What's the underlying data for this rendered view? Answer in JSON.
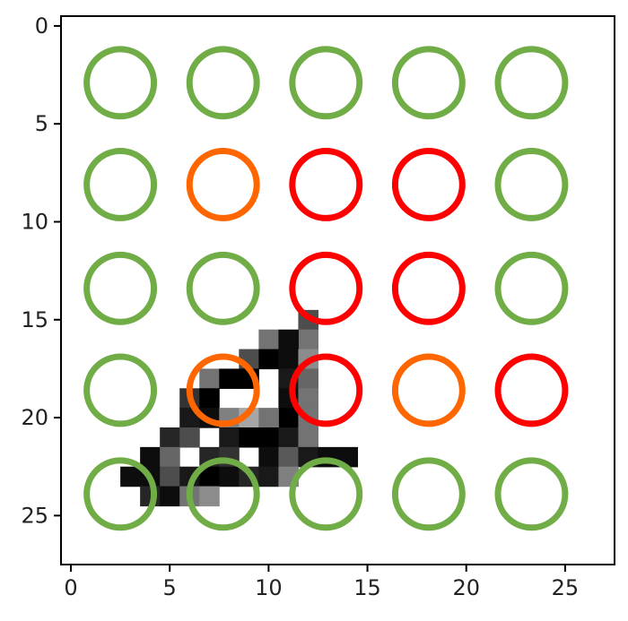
{
  "chart_data": {
    "type": "heatmap",
    "xlim": [
      -0.5,
      27.5
    ],
    "ylim": [
      27.5,
      -0.5
    ],
    "y_inverted": true,
    "xticks": [
      0,
      5,
      10,
      15,
      20,
      25
    ],
    "yticks": [
      0,
      5,
      10,
      15,
      20,
      25
    ],
    "xtick_labels": [
      "0",
      "5",
      "10",
      "15",
      "20",
      "25"
    ],
    "ytick_labels": [
      "0",
      "5",
      "10",
      "15",
      "20",
      "25"
    ],
    "grid": false,
    "image": {
      "description_free": true,
      "colormap": "gray_r",
      "pixels": [
        [
          15,
          12,
          0.7
        ],
        [
          16,
          12,
          0.55
        ],
        [
          16,
          10,
          0.55
        ],
        [
          16,
          11,
          0.95
        ],
        [
          17,
          9,
          0.7
        ],
        [
          17,
          10,
          1.0
        ],
        [
          17,
          11,
          0.95
        ],
        [
          17,
          12,
          0.45
        ],
        [
          18,
          7,
          0.55
        ],
        [
          18,
          8,
          1.0
        ],
        [
          18,
          9,
          1.0
        ],
        [
          18,
          11,
          0.9
        ],
        [
          18,
          12,
          0.6
        ],
        [
          19,
          6,
          0.8
        ],
        [
          19,
          7,
          1.0
        ],
        [
          19,
          11,
          0.95
        ],
        [
          19,
          12,
          0.55
        ],
        [
          20,
          6,
          0.9
        ],
        [
          20,
          7,
          0.95
        ],
        [
          20,
          8,
          0.5
        ],
        [
          20,
          11,
          1.0
        ],
        [
          20,
          9,
          0.35
        ],
        [
          20,
          10,
          0.55
        ],
        [
          20,
          12,
          0.55
        ],
        [
          21,
          5,
          0.85
        ],
        [
          21,
          6,
          0.7
        ],
        [
          21,
          8,
          0.9
        ],
        [
          21,
          9,
          1.0
        ],
        [
          21,
          10,
          1.0
        ],
        [
          21,
          11,
          0.9
        ],
        [
          21,
          12,
          0.55
        ],
        [
          22,
          4,
          0.95
        ],
        [
          22,
          5,
          0.6
        ],
        [
          22,
          7,
          0.85
        ],
        [
          22,
          8,
          0.8
        ],
        [
          22,
          10,
          0.95
        ],
        [
          22,
          11,
          0.65
        ],
        [
          22,
          12,
          0.9
        ],
        [
          22,
          13,
          0.95
        ],
        [
          22,
          14,
          0.95
        ],
        [
          23,
          3,
          0.95
        ],
        [
          23,
          4,
          0.95
        ],
        [
          23,
          5,
          0.7
        ],
        [
          23,
          6,
          0.9
        ],
        [
          23,
          7,
          1.0
        ],
        [
          23,
          8,
          0.95
        ],
        [
          23,
          9,
          0.85
        ],
        [
          23,
          10,
          0.9
        ],
        [
          23,
          11,
          0.5
        ],
        [
          24,
          4,
          0.85
        ],
        [
          24,
          5,
          0.95
        ],
        [
          24,
          6,
          0.55
        ],
        [
          24,
          7,
          0.45
        ]
      ]
    },
    "circles": {
      "x": [
        2.5,
        7.7,
        12.9,
        18.1,
        23.3
      ],
      "y": [
        2.9,
        8.1,
        13.4,
        18.6,
        23.9
      ],
      "radius": 1.7,
      "colors": [
        [
          "#70ad47",
          "#70ad47",
          "#70ad47",
          "#70ad47",
          "#70ad47"
        ],
        [
          "#70ad47",
          "#ff6600",
          "#ff0000",
          "#ff0000",
          "#70ad47"
        ],
        [
          "#70ad47",
          "#70ad47",
          "#ff0000",
          "#ff0000",
          "#70ad47"
        ],
        [
          "#70ad47",
          "#ff6600",
          "#ff0000",
          "#ff6600",
          "#ff0000"
        ],
        [
          "#70ad47",
          "#70ad47",
          "#70ad47",
          "#70ad47",
          "#70ad47"
        ]
      ]
    }
  }
}
